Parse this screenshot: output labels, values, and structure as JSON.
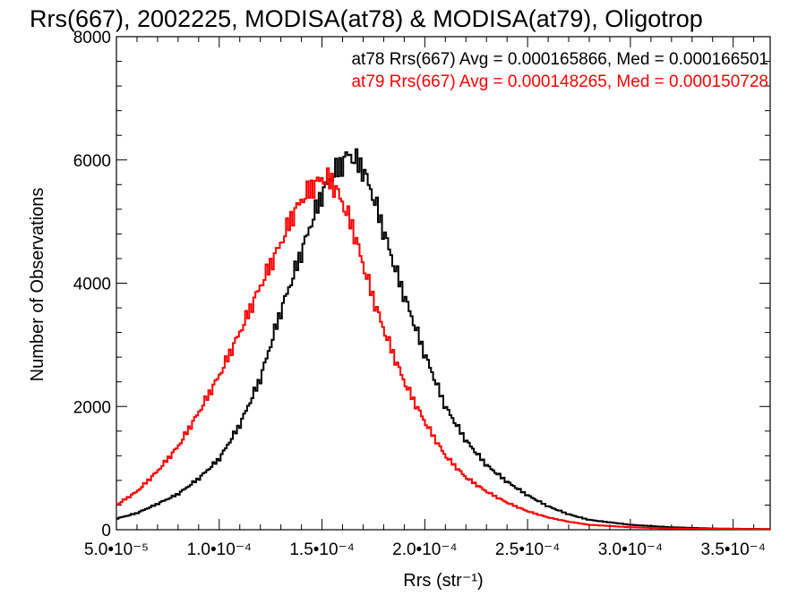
{
  "chart_data": {
    "type": "line",
    "step": true,
    "title": "Rrs(667), 2002225, MODISA(at78) & MODISA(at79), Oligotrop",
    "xlabel": "Rrs (str⁻¹)",
    "ylabel": "Number of Observations",
    "xlim": [
      5e-05,
      0.000368
    ],
    "ylim": [
      0,
      8000
    ],
    "x_ticks": [
      5e-05,
      0.0001,
      0.00015,
      0.0002,
      0.00025,
      0.0003,
      0.00035
    ],
    "x_tick_labels": [
      "5.0•10⁻⁵",
      "1.0•10⁻⁴",
      "1.5•10⁻⁴",
      "2.0•10⁻⁴",
      "2.5•10⁻⁴",
      "3.0•10⁻⁴",
      "3.5•10⁻⁴"
    ],
    "y_ticks": [
      0,
      2000,
      4000,
      6000,
      8000
    ],
    "y_tick_labels": [
      "0",
      "2000",
      "4000",
      "6000",
      "8000"
    ],
    "grid": false,
    "legend_position": "top-right",
    "series": [
      {
        "name": "at78",
        "label": "at78 Rrs(667) Avg = 0.000165866, Med = 0.000166501",
        "color": "#000000",
        "x": [
          5e-05,
          6e-05,
          7e-05,
          8e-05,
          9e-05,
          0.0001,
          0.00011,
          0.00012,
          0.00013,
          0.00014,
          0.000145,
          0.00015,
          0.000155,
          0.00016,
          0.000163,
          0.000166,
          0.00017,
          0.000175,
          0.00018,
          0.000185,
          0.00019,
          0.0002,
          0.00021,
          0.00022,
          0.00023,
          0.00024,
          0.00025,
          0.00026,
          0.00027,
          0.00028,
          0.0003,
          0.00032,
          0.00034,
          0.000368
        ],
        "values": [
          180,
          270,
          420,
          580,
          830,
          1150,
          1700,
          2450,
          3550,
          4500,
          5000,
          5450,
          5750,
          5950,
          6100,
          6000,
          5850,
          5400,
          4850,
          4300,
          3800,
          2850,
          2000,
          1450,
          1050,
          780,
          560,
          380,
          250,
          160,
          80,
          40,
          20,
          10
        ]
      },
      {
        "name": "at79",
        "label": "at79 Rrs(667) Avg = 0.000148265, Med = 0.000150728",
        "color": "#ff0000",
        "x": [
          5e-05,
          6e-05,
          7e-05,
          8e-05,
          9e-05,
          0.0001,
          0.00011,
          0.00012,
          0.00013,
          0.000135,
          0.00014,
          0.000145,
          0.00015,
          0.000155,
          0.00016,
          0.000165,
          0.00017,
          0.000175,
          0.00018,
          0.00019,
          0.0002,
          0.00021,
          0.00022,
          0.00023,
          0.00024,
          0.00025,
          0.00026,
          0.00027,
          0.00028,
          0.0003,
          0.00032,
          0.000368
        ],
        "values": [
          400,
          620,
          950,
          1350,
          1900,
          2500,
          3200,
          3950,
          4650,
          5050,
          5350,
          5550,
          5700,
          5650,
          5300,
          4900,
          4300,
          3750,
          3250,
          2400,
          1750,
          1200,
          850,
          620,
          440,
          300,
          200,
          130,
          80,
          40,
          20,
          10
        ]
      }
    ]
  }
}
